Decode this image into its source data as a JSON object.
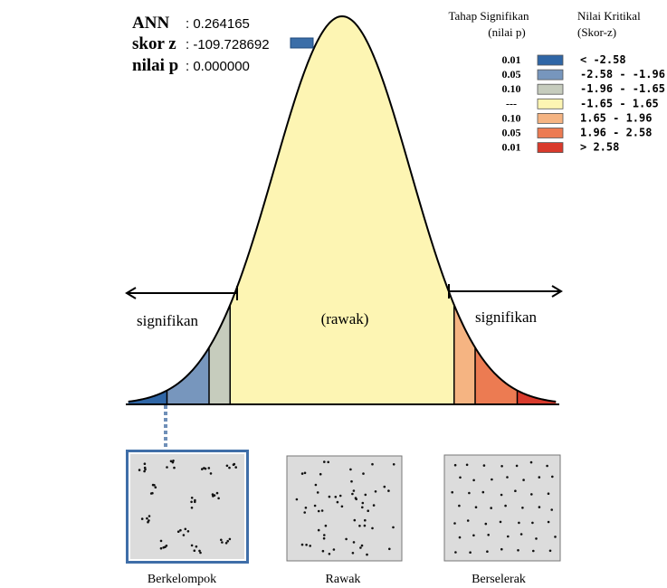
{
  "stats": {
    "ann_label": "ANN",
    "ann_value": ": 0.264165",
    "z_label": "skor z",
    "z_value": ": -109.728692",
    "p_label": "nilai p",
    "p_value": ": 0.000000",
    "z_marker_color": "#3b6ea8"
  },
  "legend": {
    "sig_header_line1": "Tahap Signifikan",
    "sig_header_line2": "(nilai p)",
    "crit_header_line1": "Nilai Kritikal",
    "crit_header_line2": "(Skor-z)",
    "rows": [
      {
        "p": "0.01",
        "range": "< -2.58",
        "color": "#2f66a6"
      },
      {
        "p": "0.05",
        "range": "-2.58 - -1.96",
        "color": "#7796bd"
      },
      {
        "p": "0.10",
        "range": "-1.96 - -1.65",
        "color": "#c6ccbd"
      },
      {
        "p": "---",
        "range": "-1.65 - 1.65",
        "color": "#fdf5b3"
      },
      {
        "p": "0.10",
        "range": "1.65 - 1.96",
        "color": "#f5b482"
      },
      {
        "p": "0.05",
        "range": "1.96 - 2.58",
        "color": "#ec7b52"
      },
      {
        "p": "0.01",
        "range": "> 2.58",
        "color": "#d93a2c"
      }
    ]
  },
  "curve_labels": {
    "left": "signifikan",
    "center": "(rawak)",
    "right": "signifikan"
  },
  "patterns": [
    {
      "label": "Berkelompok",
      "highlighted": true
    },
    {
      "label": "Rawak",
      "highlighted": false
    },
    {
      "label": "Berselerak",
      "highlighted": false
    }
  ]
}
